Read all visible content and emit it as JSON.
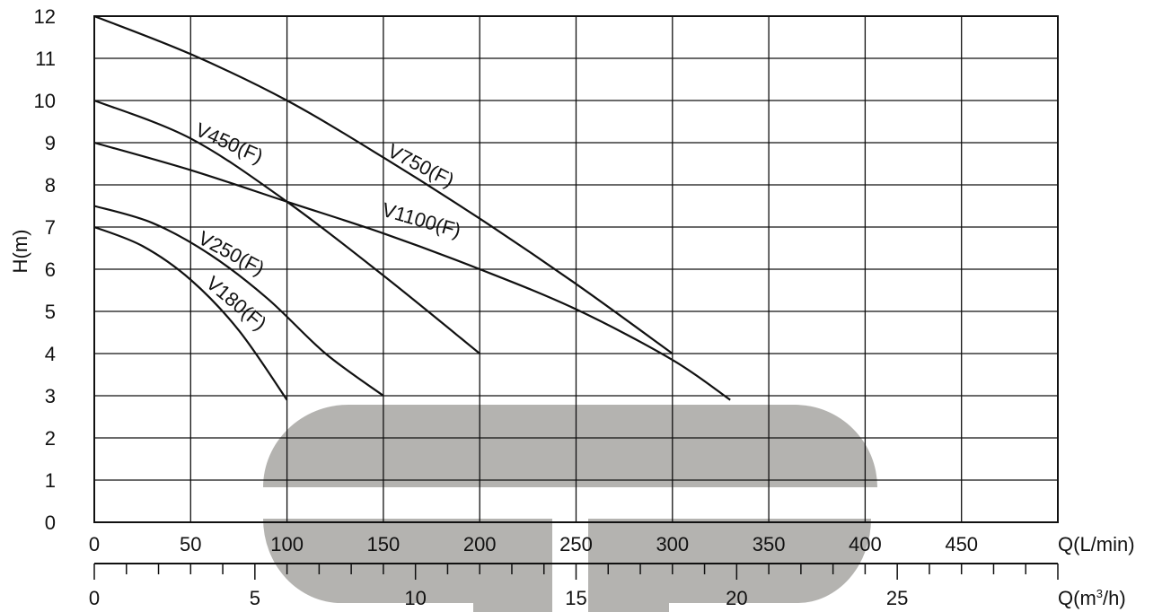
{
  "chart_data": {
    "type": "line",
    "title": "",
    "ylabel": "H(m)",
    "xlabel": "Q(L/min)",
    "xlabel2_prefix": "Q(m",
    "xlabel2_sup": "3",
    "xlabel2_suffix": "/h)",
    "xlim": [
      0,
      500
    ],
    "ylim": [
      0,
      12
    ],
    "x2lim": [
      0,
      30
    ],
    "grid": true,
    "x_ticks": [
      "0",
      "50",
      "100",
      "150",
      "200",
      "250",
      "300",
      "350",
      "400",
      "450"
    ],
    "y_ticks": [
      "0",
      "1",
      "2",
      "3",
      "4",
      "5",
      "6",
      "7",
      "8",
      "9",
      "10",
      "11",
      "12"
    ],
    "x2_ticks": [
      "0",
      "5",
      "10",
      "15",
      "20",
      "25"
    ],
    "colors": {
      "line": "#111111",
      "grid": "#111111",
      "watermark": "#b4b3b0"
    },
    "series": [
      {
        "name": "V180(F)",
        "x": [
          0,
          25,
          50,
          75,
          100
        ],
        "y": [
          7.0,
          6.55,
          5.75,
          4.55,
          2.9
        ]
      },
      {
        "name": "V250(F)",
        "x": [
          0,
          30,
          60,
          90,
          120,
          150
        ],
        "y": [
          7.5,
          7.1,
          6.35,
          5.3,
          4.0,
          3.0
        ]
      },
      {
        "name": "V450(F)",
        "x": [
          0,
          50,
          100,
          150,
          200
        ],
        "y": [
          10.0,
          9.1,
          7.6,
          5.85,
          4.0
        ]
      },
      {
        "name": "V750(F)",
        "x": [
          0,
          50,
          100,
          150,
          200,
          250,
          300
        ],
        "y": [
          12.0,
          11.1,
          10.0,
          8.65,
          7.2,
          5.65,
          4.0
        ]
      },
      {
        "name": "V1100(F)",
        "x": [
          0,
          50,
          100,
          150,
          200,
          250,
          300,
          330
        ],
        "y": [
          9.0,
          8.35,
          7.6,
          6.85,
          6.0,
          5.05,
          3.85,
          2.9
        ]
      }
    ]
  }
}
